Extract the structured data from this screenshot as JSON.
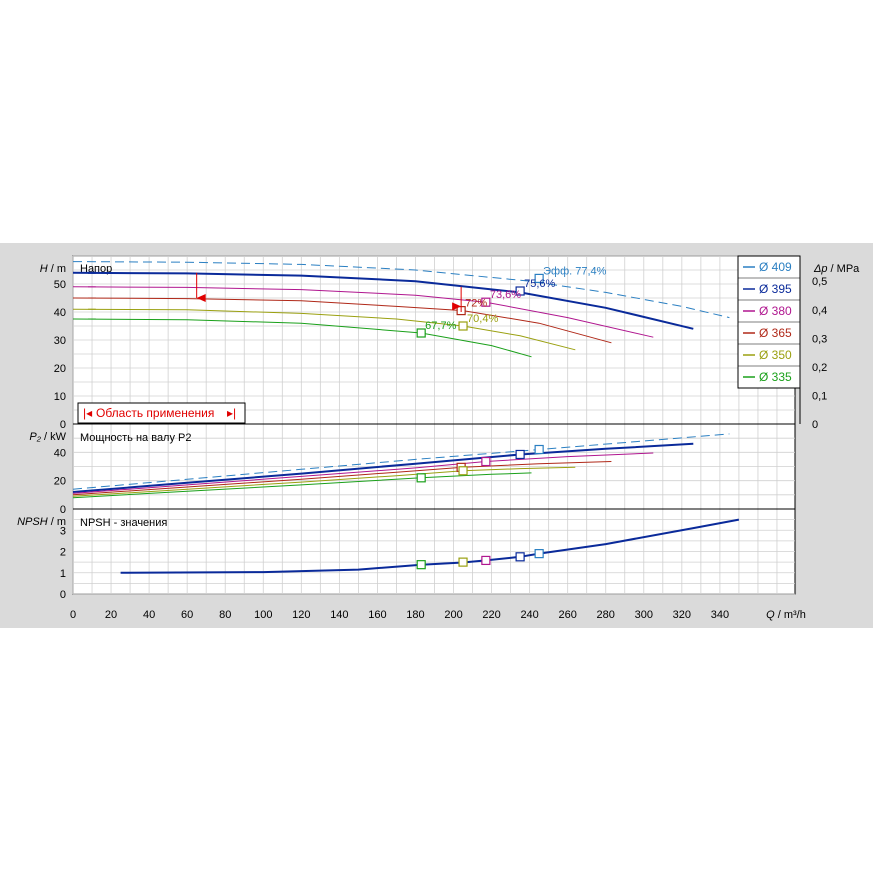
{
  "colors": {
    "d409": "#2a7fc2",
    "d395": "#0a2a9a",
    "d380": "#b0168f",
    "d365": "#b02818",
    "d350": "#9aa010",
    "d335": "#1aa01a",
    "operating_area": "#e00000",
    "background": "#dadada",
    "plot": "#ffffff"
  },
  "chart_data": [
    {
      "name": "head",
      "type": "line",
      "title": "Напор",
      "ylabel_sym": "H",
      "ylabel_unit": "m",
      "y2label_sym": "Δp",
      "y2label_unit": "MPa",
      "xlim": [
        0,
        350
      ],
      "ylim": [
        0,
        60
      ],
      "yticks": [
        0,
        10,
        20,
        30,
        40,
        50
      ],
      "y2ticks": [
        "0",
        "0,1",
        "0,2",
        "0,3",
        "0,4",
        "0,5"
      ],
      "grid": true,
      "legend_position": "right",
      "operating_area_label": "Область применения",
      "series": [
        {
          "name": "Ø 409",
          "color_key": "d409",
          "x": [
            0,
            60,
            120,
            180,
            240,
            280,
            320,
            345
          ],
          "y": [
            58,
            57.8,
            57,
            55,
            51,
            47,
            42,
            38
          ],
          "solid_from": null,
          "eff_label": "Эфф.  77,4%",
          "bep": [
            245,
            52
          ]
        },
        {
          "name": "Ø 395",
          "color_key": "d395",
          "x": [
            0,
            60,
            120,
            180,
            235,
            280,
            326
          ],
          "y": [
            54,
            53.8,
            53,
            51,
            47,
            41.5,
            34
          ],
          "solid_from": 65,
          "solid_to": 235,
          "eff_label": "75,6%",
          "bep": [
            235,
            47.5
          ]
        },
        {
          "name": "Ø 380",
          "color_key": "d380",
          "x": [
            0,
            60,
            120,
            180,
            217,
            260,
            305
          ],
          "y": [
            49,
            48.8,
            48,
            46,
            43.5,
            38,
            31
          ],
          "solid_from": 216,
          "solid_to": 216,
          "eff_label": "73,6%",
          "bep": [
            217,
            43.5
          ]
        },
        {
          "name": "Ø 365",
          "color_key": "d365",
          "x": [
            0,
            60,
            120,
            170,
            205,
            245,
            283
          ],
          "y": [
            45,
            44.8,
            44,
            42,
            40.5,
            36,
            29
          ],
          "solid_from": 10,
          "solid_to": 283,
          "eff_label": "72%",
          "bep": [
            204,
            40.5
          ]
        },
        {
          "name": "Ø 350",
          "color_key": "d350",
          "x": [
            0,
            60,
            120,
            170,
            205,
            235,
            264
          ],
          "y": [
            41,
            40.8,
            39.5,
            37.5,
            35,
            31.5,
            26.5
          ],
          "solid_from": 10,
          "solid_to": 264,
          "eff_label": "70,4%",
          "bep": [
            205,
            35
          ]
        },
        {
          "name": "Ø 335",
          "color_key": "d335",
          "x": [
            0,
            60,
            120,
            183,
            220,
            241
          ],
          "y": [
            37.5,
            37.2,
            36,
            32.5,
            28,
            24
          ],
          "solid_from": 10,
          "solid_to": 241,
          "eff_label": "67,7%",
          "bep": [
            183,
            32.5
          ]
        }
      ]
    },
    {
      "name": "power",
      "type": "line",
      "title": "Мощность на валу P2",
      "ylabel_sym": "P₂",
      "ylabel_unit": "kW",
      "ylim": [
        0,
        60
      ],
      "yticks": [
        0,
        20,
        40
      ],
      "grid": true,
      "series": [
        {
          "name": "Ø 409",
          "color_key": "d409",
          "x": [
            0,
            60,
            120,
            180,
            245,
            300,
            345
          ],
          "y": [
            14,
            21,
            28,
            35,
            42,
            48,
            53
          ]
        },
        {
          "name": "Ø 395",
          "color_key": "d395",
          "x": [
            0,
            60,
            120,
            180,
            235,
            280,
            326
          ],
          "y": [
            12,
            18.5,
            25,
            32,
            38.5,
            42.5,
            46
          ]
        },
        {
          "name": "Ø 380",
          "color_key": "d380",
          "x": [
            0,
            60,
            120,
            180,
            217,
            260,
            305
          ],
          "y": [
            11,
            17,
            23,
            29,
            33.5,
            37,
            39.5
          ]
        },
        {
          "name": "Ø 365",
          "color_key": "d365",
          "x": [
            0,
            60,
            120,
            170,
            205,
            245,
            283
          ],
          "y": [
            10,
            15.5,
            21,
            26,
            29.5,
            32,
            33.5
          ]
        },
        {
          "name": "Ø 350",
          "color_key": "d350",
          "x": [
            0,
            60,
            120,
            170,
            205,
            235,
            264
          ],
          "y": [
            9,
            14,
            19,
            23.5,
            27,
            28.5,
            29.5
          ]
        },
        {
          "name": "Ø 335",
          "color_key": "d335",
          "x": [
            0,
            60,
            120,
            183,
            220,
            241
          ],
          "y": [
            8,
            12.5,
            17,
            22,
            24.5,
            25.5
          ]
        }
      ]
    },
    {
      "name": "npsh",
      "type": "line",
      "title": "NPSH - значения",
      "ylabel_sym": "NPSH",
      "ylabel_unit": "m",
      "xlabel_sym": "Q",
      "xlabel_unit": "m³/h",
      "ylim": [
        0,
        4
      ],
      "yticks": [
        0,
        1,
        2,
        3
      ],
      "xticks": [
        0,
        20,
        40,
        60,
        80,
        100,
        120,
        140,
        160,
        180,
        200,
        220,
        240,
        260,
        280,
        300,
        320,
        340
      ],
      "grid": true,
      "series": [
        {
          "name": "NPSH",
          "color_key": "d395",
          "x": [
            25,
            100,
            150,
            183,
            205,
            217,
            235,
            245,
            280,
            326,
            350
          ],
          "y": [
            1.0,
            1.03,
            1.15,
            1.38,
            1.48,
            1.58,
            1.75,
            1.9,
            2.35,
            3.1,
            3.5
          ]
        }
      ],
      "bep_markers": [
        {
          "color_key": "d335",
          "x": 183,
          "y": 1.38
        },
        {
          "color_key": "d350",
          "x": 205,
          "y": 1.5
        },
        {
          "color_key": "d380",
          "x": 217,
          "y": 1.58
        },
        {
          "color_key": "d395",
          "x": 235,
          "y": 1.75
        },
        {
          "color_key": "d409",
          "x": 245,
          "y": 1.9
        }
      ]
    }
  ]
}
